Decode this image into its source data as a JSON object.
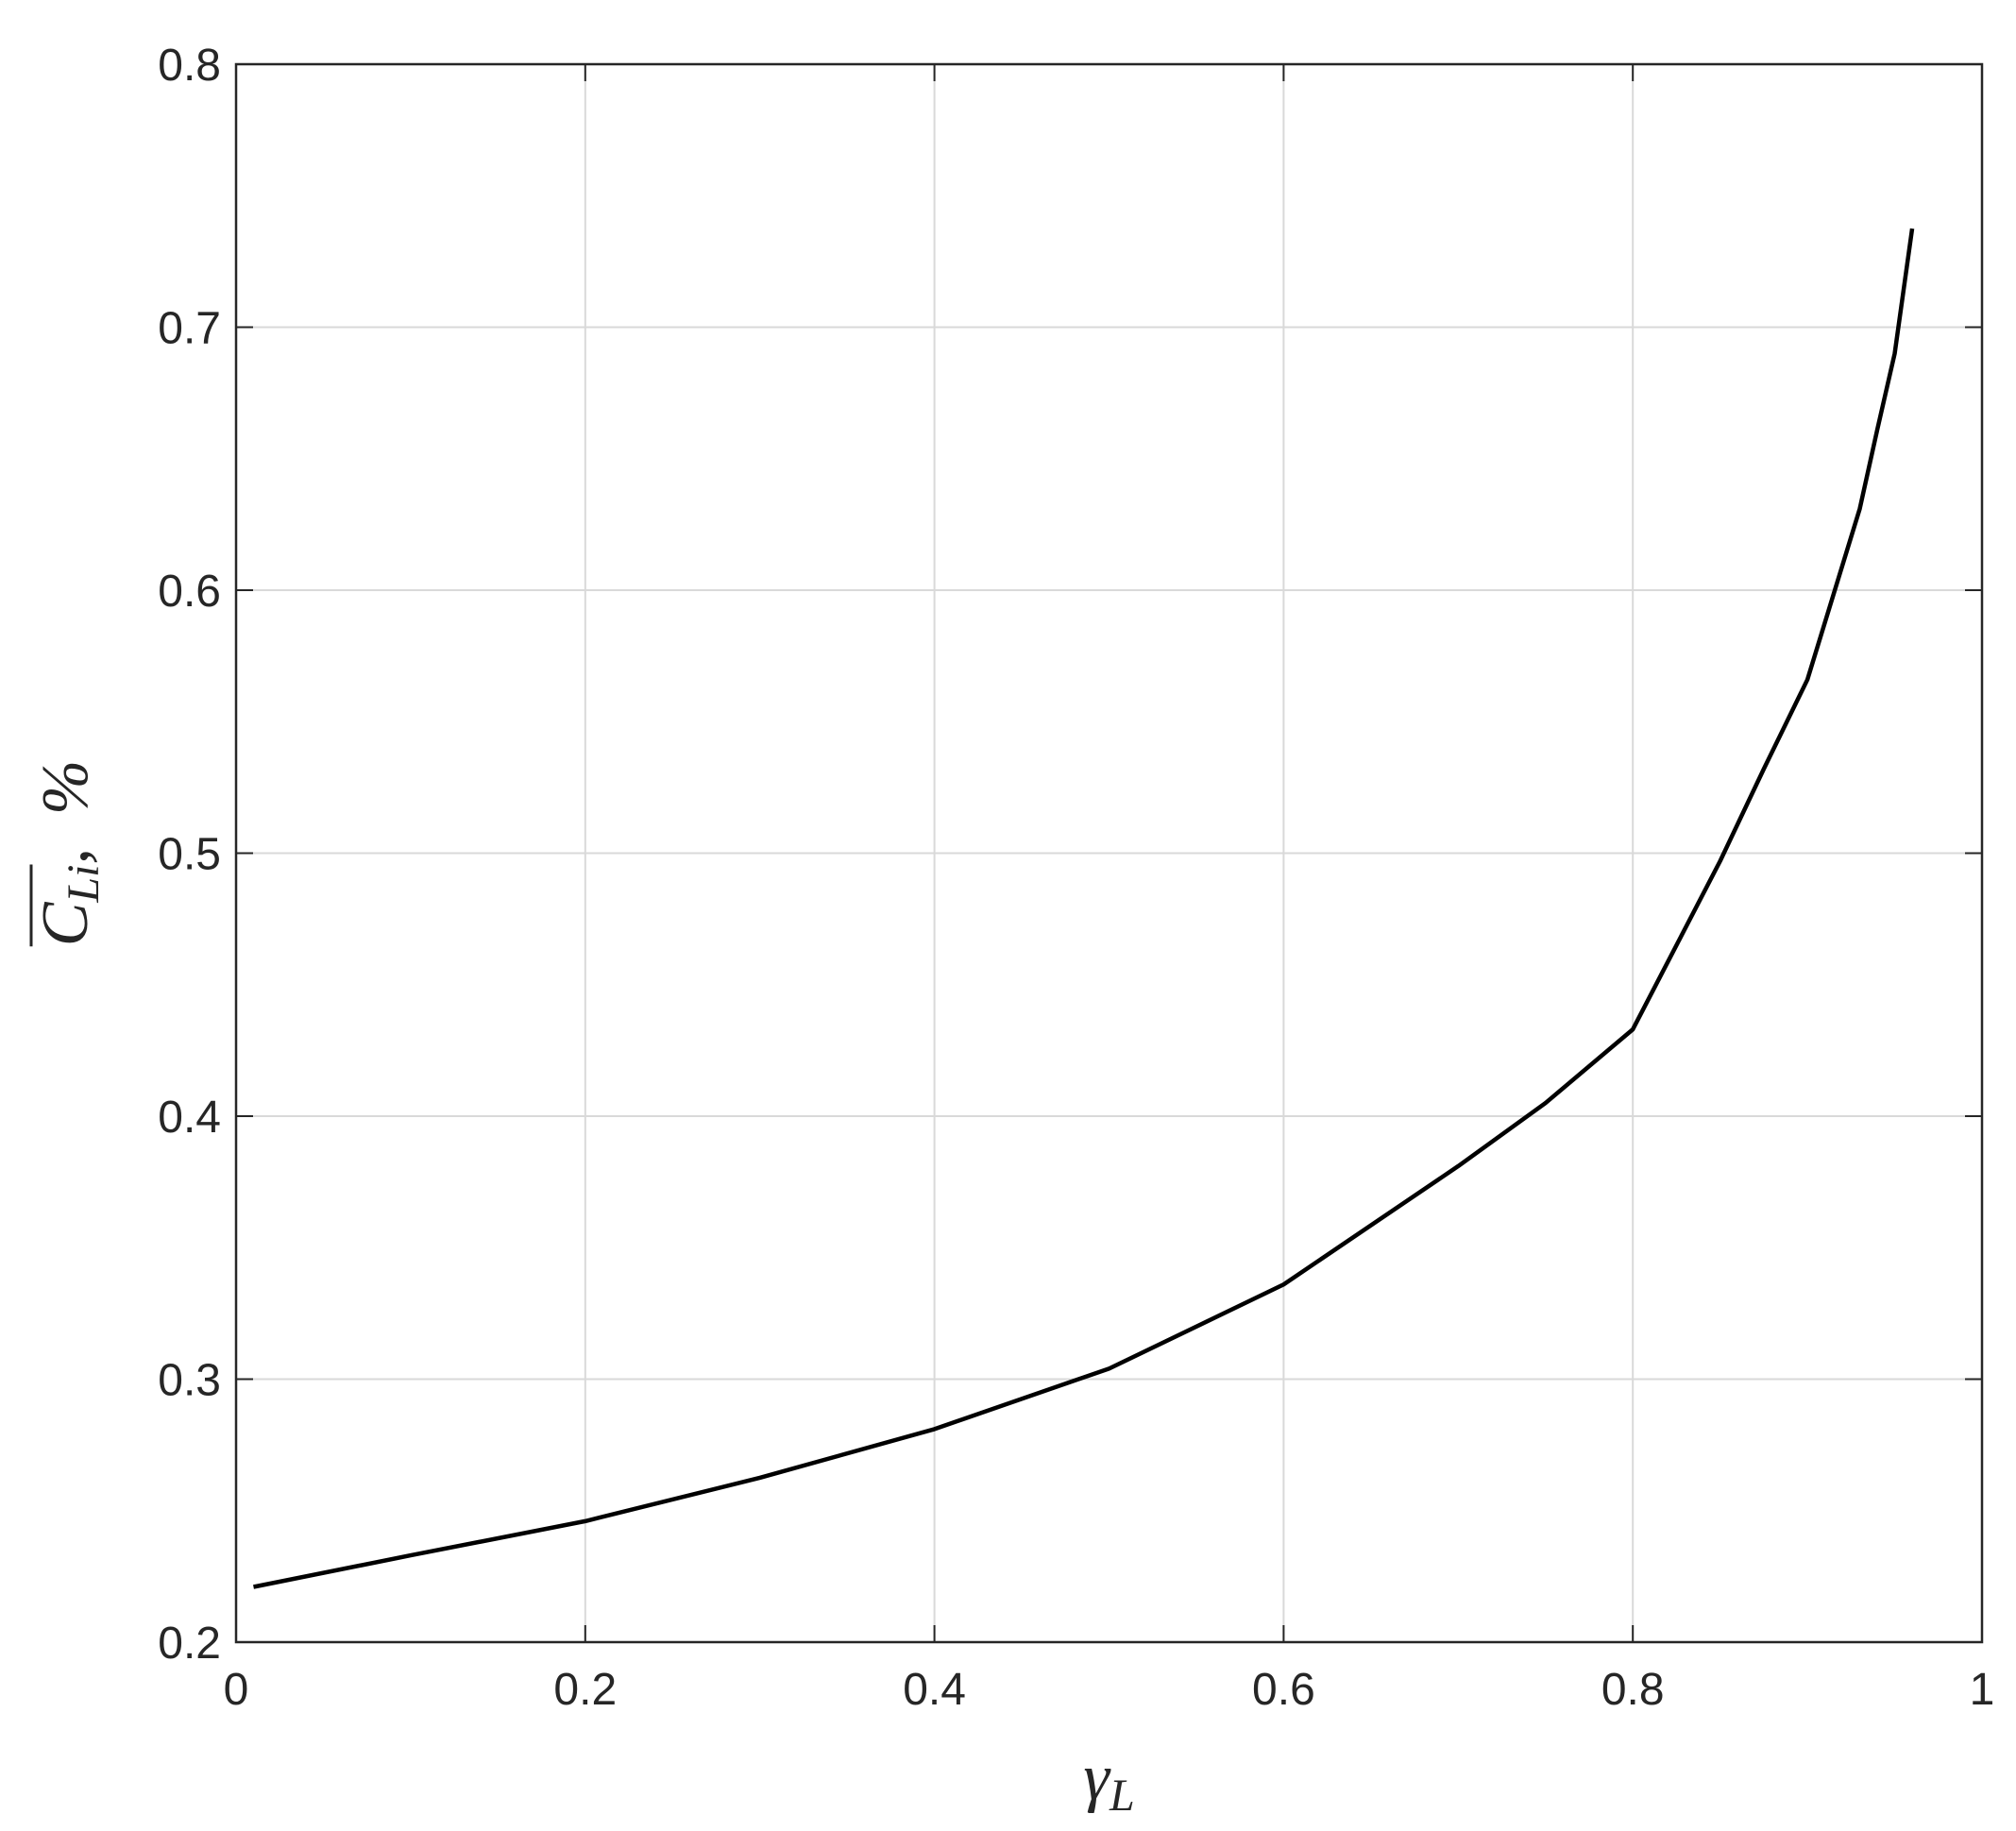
{
  "chart_data": {
    "type": "line",
    "xlabel": {
      "symbol": "γ",
      "subscript": "L"
    },
    "ylabel": {
      "symbol": "C",
      "subscript": "Li",
      "suffix": ",  %"
    },
    "x": [
      0.01,
      0.1,
      0.2,
      0.3,
      0.4,
      0.5,
      0.6,
      0.7,
      0.75,
      0.8,
      0.85,
      0.875,
      0.9,
      0.93,
      0.94,
      0.95,
      0.96
    ],
    "series": [
      {
        "name": "C_Li",
        "color": "#000000",
        "values": [
          0.221,
          0.233,
          0.246,
          0.2625,
          0.281,
          0.304,
          0.336,
          0.381,
          0.405,
          0.433,
          0.497,
          0.532,
          0.566,
          0.631,
          0.661,
          0.69,
          0.7375
        ]
      }
    ],
    "xlim": [
      0,
      1
    ],
    "xticks": [
      0,
      0.2,
      0.4,
      0.6,
      0.8,
      1
    ],
    "ylim": [
      0.2,
      0.8
    ],
    "yticks": [
      0.2,
      0.3,
      0.4,
      0.5,
      0.6,
      0.7,
      0.8
    ],
    "grid": true
  }
}
